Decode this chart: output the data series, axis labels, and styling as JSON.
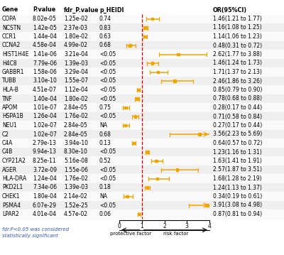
{
  "genes": [
    "COPA",
    "NCSTN",
    "CCR1",
    "CCNA2",
    "HIST1H4E",
    "H4C8",
    "GABBR1",
    "TUBB",
    "HLA-B",
    "TNF",
    "APOM",
    "HSPA1B",
    "NEU1",
    "C2",
    "C4A",
    "C4B",
    "CYP21A2",
    "AGER",
    "HLA-DRA",
    "PKD2L1",
    "CHEK1",
    "PSMA4",
    "LPAR2"
  ],
  "p_value": [
    "8.02e-05",
    "1.42e-05",
    "1.44e-04",
    "4.58e-04",
    "1.41e-06",
    "7.79e-06",
    "1.58e-06",
    "3.10e-10",
    "4.51e-07",
    "1.40e-04",
    "1.01e-07",
    "1.26e-04",
    "1.02e-07",
    "1.02e-07",
    "2.79e-13",
    "9.94e-13",
    "8.25e-11",
    "3.72e-09",
    "1.24e-04",
    "7.34e-06",
    "1.80e-04",
    "6.07e-29",
    "4.01e-04"
  ],
  "fdr_p_value": [
    "1.25e-02",
    "2.37e-03",
    "1.80e-02",
    "4.99e-02",
    "3.21e-04",
    "1.39e-03",
    "3.29e-04",
    "1.55e-07",
    "1.12e-04",
    "1.80e-02",
    "2.84e-05",
    "1.76e-02",
    "2.84e-05",
    "2.84e-05",
    "3.94e-10",
    "8.30e-10",
    "5.16e-08",
    "1.55e-06",
    "1.76e-02",
    "1.39e-03",
    "2.14e-02",
    "1.52e-25",
    "4.57e-02"
  ],
  "p_heidi": [
    "0.74",
    "0.83",
    "0.63",
    "0.68",
    "<0.05",
    "<0.05",
    "<0.05",
    "<0.05",
    "<0.05",
    "<0.05",
    "0.75",
    "<0.05",
    "NA",
    "0.68",
    "0.13",
    "<0.05",
    "0.52",
    "<0.05",
    "<0.05",
    "0.18",
    "NA",
    "<0.05",
    "0.06"
  ],
  "or": [
    1.46,
    1.16,
    1.14,
    0.48,
    2.62,
    1.46,
    1.71,
    2.46,
    0.85,
    0.78,
    0.28,
    0.71,
    0.27,
    3.56,
    0.64,
    1.23,
    1.63,
    2.57,
    1.68,
    1.24,
    0.34,
    3.91,
    0.87
  ],
  "ci_low": [
    1.21,
    1.08,
    1.06,
    0.31,
    1.77,
    1.24,
    1.37,
    1.86,
    0.79,
    0.68,
    0.17,
    0.58,
    0.17,
    2.23,
    0.57,
    1.16,
    1.41,
    1.87,
    1.28,
    1.13,
    0.19,
    3.08,
    0.81
  ],
  "ci_high": [
    1.77,
    1.25,
    1.23,
    0.72,
    3.88,
    1.73,
    2.13,
    3.26,
    0.9,
    0.88,
    0.44,
    0.84,
    0.44,
    5.69,
    0.72,
    1.31,
    1.91,
    3.51,
    2.19,
    1.37,
    0.61,
    4.98,
    0.94
  ],
  "or_text": [
    "1.46(1.21 to 1.77)",
    "1.16(1.08 to 1.25)",
    "1.14(1.06 to 1.23)",
    "0.48(0.31 to 0.72)",
    "2.62(1.77 to 3.88)",
    "1.46(1.24 to 1.73)",
    "1.71(1.37 to 2.13)",
    "2.46(1.86 to 3.26)",
    "0.85(0.79 to 0.90)",
    "0.78(0.68 to 0.88)",
    "0.28(0.17 to 0.44)",
    "0.71(0.58 to 0.84)",
    "0.27(0.17 to 0.44)",
    "3.56(2.23 to 5.69)",
    "0.64(0.57 to 0.72)",
    "1.23(1.16 to 1.31)",
    "1.63(1.41 to 1.91)",
    "2.57(1.87 to 3.51)",
    "1.68(1.28 to 2.19)",
    "1.24(1.13 to 1.37)",
    "0.34(0.19 to 0.61)",
    "3.91(3.08 to 4.98)",
    "0.87(0.81 to 0.94)"
  ],
  "orange_color": "#F0A500",
  "dashed_color": "#CC0000",
  "footnote_line1": "fdr.P<0.05 was considered",
  "footnote_line2": "statistically significant",
  "xlabel_left": "protective factor",
  "xlabel_right": "risk factor",
  "xlim": [
    0,
    4
  ],
  "xticks": [
    0,
    1,
    2,
    3,
    4
  ],
  "bg_even": "#EFEFEF",
  "bg_odd": "#FAFAFA",
  "font_size_data": 5.5,
  "font_size_header": 5.8
}
